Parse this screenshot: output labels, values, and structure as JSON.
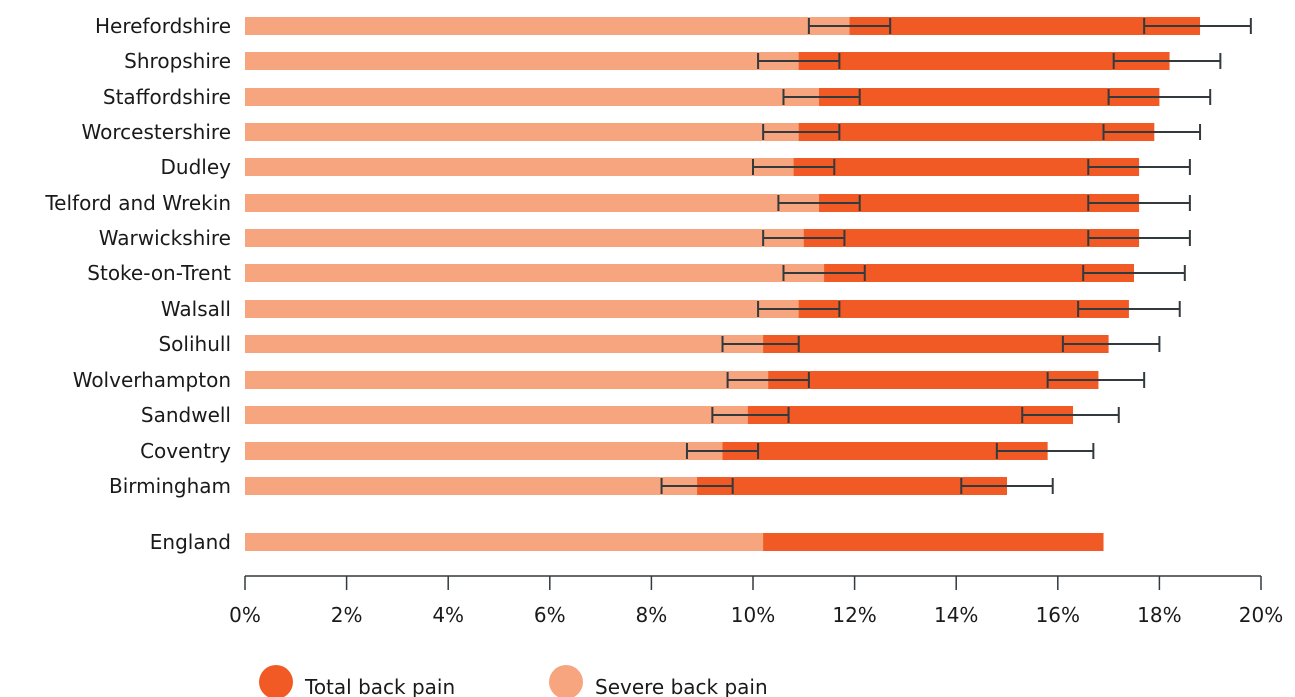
{
  "chart_data": {
    "type": "bar",
    "orientation": "horizontal",
    "stacked_overlay": true,
    "categories": [
      "Herefordshire",
      "Shropshire",
      "Staffordshire",
      "Worcestershire",
      "Dudley",
      "Telford and Wrekin",
      "Warwickshire",
      "Stoke-on-Trent",
      "Walsall",
      "Solihull",
      "Wolverhampton",
      "Sandwell",
      "Coventry",
      "Birmingham",
      "England"
    ],
    "series": [
      {
        "name": "Total back pain",
        "color": "#f15a24",
        "values": [
          18.8,
          18.2,
          18.0,
          17.9,
          17.6,
          17.6,
          17.6,
          17.5,
          17.4,
          17.0,
          16.8,
          16.3,
          15.8,
          15.0,
          16.9
        ],
        "error_low": [
          17.7,
          17.1,
          17.0,
          16.9,
          16.6,
          16.6,
          16.6,
          16.5,
          16.4,
          16.1,
          15.8,
          15.3,
          14.8,
          14.1,
          null
        ],
        "error_high": [
          19.8,
          19.2,
          19.0,
          18.8,
          18.6,
          18.6,
          18.6,
          18.5,
          18.4,
          18.0,
          17.7,
          17.2,
          16.7,
          15.9,
          null
        ]
      },
      {
        "name": "Severe back pain",
        "color": "#f6a57e",
        "values": [
          11.9,
          10.9,
          11.3,
          10.9,
          10.8,
          11.3,
          11.0,
          11.4,
          10.9,
          10.2,
          10.3,
          9.9,
          9.4,
          8.9,
          10.2
        ],
        "error_low": [
          11.1,
          10.1,
          10.6,
          10.2,
          10.0,
          10.5,
          10.2,
          10.6,
          10.1,
          9.4,
          9.5,
          9.2,
          8.7,
          8.2,
          null
        ],
        "error_high": [
          12.7,
          11.7,
          12.1,
          11.7,
          11.6,
          12.1,
          11.8,
          12.2,
          11.7,
          10.9,
          11.1,
          10.7,
          10.1,
          9.6,
          null
        ]
      }
    ],
    "xlim": [
      0,
      20
    ],
    "xticks": [
      0,
      2,
      4,
      6,
      8,
      10,
      12,
      14,
      16,
      18,
      20
    ],
    "tick_labels": [
      "0%",
      "2%",
      "4%",
      "6%",
      "8%",
      "10%",
      "12%",
      "14%",
      "16%",
      "18%",
      "20%"
    ],
    "grid": false,
    "legend_position": "bottom-left",
    "error_bar_color": "#333a3d"
  }
}
